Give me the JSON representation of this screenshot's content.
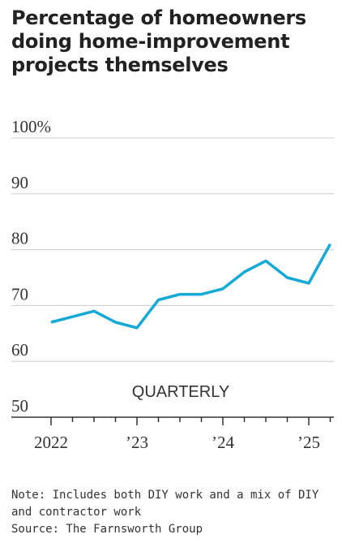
{
  "chart_data": {
    "type": "line",
    "title": "Percentage of homeowners doing home-improvement projects themselves",
    "subtitle": "QUARTERLY",
    "ylim": [
      50,
      100
    ],
    "y_ticks": [
      50,
      60,
      70,
      80,
      90,
      100
    ],
    "y_tick_labels": [
      "50",
      "60",
      "70",
      "80",
      "90",
      "100%"
    ],
    "x_tick_labels": [
      "2022",
      "’23",
      "’24",
      "’25"
    ],
    "x": [
      "2022 Q1",
      "2022 Q2",
      "2022 Q3",
      "2022 Q4",
      "2023 Q1",
      "2023 Q2",
      "2023 Q3",
      "2023 Q4",
      "2024 Q1",
      "2024 Q2",
      "2024 Q3",
      "2024 Q4",
      "2025 Q1",
      "2025 Q2"
    ],
    "series": [
      {
        "values": [
          67,
          68,
          69,
          67,
          66,
          71,
          72,
          72,
          73,
          76,
          78,
          75,
          74,
          81
        ]
      }
    ],
    "grid": true,
    "line_color": "#15a9d6"
  },
  "notes": {
    "line1": "Note: Includes both DIY work and a mix of DIY",
    "line2": "and contractor work",
    "source": "Source: The Farnsworth Group"
  }
}
